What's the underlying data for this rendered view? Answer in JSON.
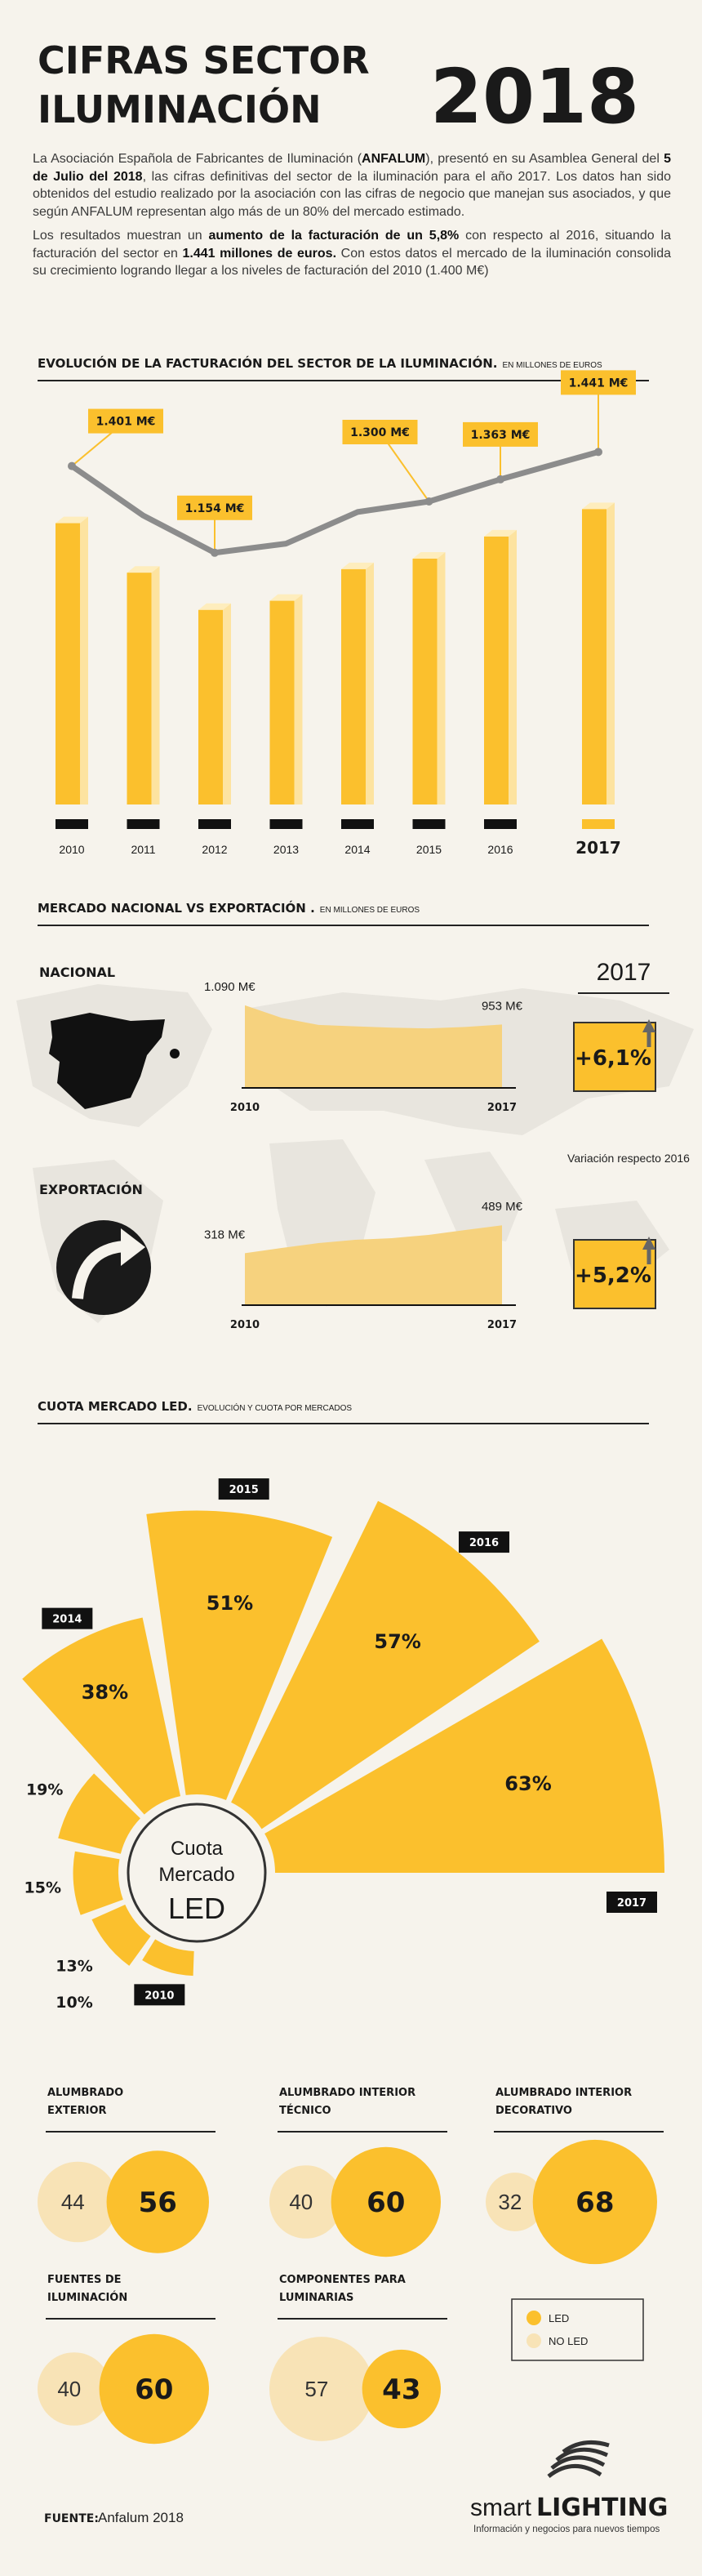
{
  "header": {
    "title_lines": [
      "CIFRAS SECTOR",
      "ILUMINACIÓN"
    ],
    "year": "2018"
  },
  "intro": [
    [
      {
        "text": "La Asociación Española de Fabricantes de Iluminación (",
        "bold": false
      },
      {
        "text": "ANFALUM",
        "bold": true
      },
      {
        "text": "), presentó en su Asamblea General del ",
        "bold": false
      },
      {
        "text": "5 de Julio del 2018",
        "bold": true
      },
      {
        "text": ", las cifras definitivas del sector de la iluminación para el año 2017. Los datos han sido obtenidos del estudio realizado por la asociación con las cifras de negocio que manejan sus asociados, y que según ANFALUM representan algo más de un 80% del mercado estimado.",
        "bold": false
      }
    ],
    [
      {
        "text": "Los resultados muestran un ",
        "bold": false
      },
      {
        "text": "aumento de la facturación de un 5,8%",
        "bold": true
      },
      {
        "text": " con respecto al 2016, situando la facturación del sector en ",
        "bold": false
      },
      {
        "text": "1.441 millones de euros.",
        "bold": true
      },
      {
        "text": " Con estos datos el mercado de la iluminación consolida su crecimiento logrando llegar a los niveles de facturación del 2010 (1.400 M€)",
        "bold": false
      }
    ]
  ],
  "chart_data": [
    {
      "type": "bar_line",
      "title": "EVOLUCIÓN DE LA FACTURACIÓN DEL SECTOR DE LA ILUMINACIÓN.",
      "subtitle": "EN MILLONES DE EUROS",
      "categories": [
        "2010",
        "2011",
        "2012",
        "2013",
        "2014",
        "2015",
        "2016",
        "2017"
      ],
      "values": [
        1401,
        1260,
        1154,
        1180,
        1270,
        1300,
        1363,
        1441
      ],
      "value_labels": [
        "1.401 M€",
        null,
        "1.154 M€",
        null,
        null,
        "1.300 M€",
        "1.363 M€",
        "1.441 M€"
      ],
      "color": "#fbc02d",
      "line_color": "#8c8c8c",
      "ylim": [
        600,
        1600
      ]
    },
    {
      "type": "area",
      "title": "MERCADO NACIONAL VS EXPORTACIÓN .",
      "subtitle": "EN MILLONES DE EUROS",
      "year": "2017",
      "change_note": "Variación respecto 2016",
      "categories": [
        "2010",
        null,
        null,
        null,
        null,
        null,
        null,
        "2017"
      ],
      "series": [
        {
          "name": "NACIONAL",
          "color": "#f6d27e",
          "values": [
            1090,
            1000,
            950,
            940,
            930,
            925,
            935,
            953
          ],
          "value_labels": [
            "1.090 M€",
            null,
            null,
            null,
            null,
            null,
            null,
            "953 M€"
          ],
          "ylim": [
            500,
            1200
          ],
          "change_label": "+6,1%"
        },
        {
          "name": "EXPORTACIÓN",
          "color": "#f6d27e",
          "values": [
            318,
            350,
            380,
            400,
            410,
            430,
            460,
            489
          ],
          "value_labels": [
            "318 M€",
            null,
            null,
            null,
            null,
            null,
            null,
            "489 M€"
          ],
          "ylim": [
            0,
            600
          ],
          "change_label": "+5,2%"
        }
      ]
    },
    {
      "type": "polar_area",
      "title": "CUOTA MERCADO LED.",
      "subtitle": "EVOLUCIÓN Y CUOTA POR MERCADOS",
      "center_label": [
        "Cuota",
        "Mercado",
        "LED"
      ],
      "categories": [
        "2010",
        null,
        null,
        null,
        "2014",
        "2015",
        "2016",
        "2017"
      ],
      "values": [
        10,
        13,
        15,
        19,
        38,
        51,
        57,
        63
      ],
      "value_labels": [
        "10%",
        "13%",
        "15%",
        "19%",
        "38%",
        "51%",
        "57%",
        "63%"
      ],
      "color": "#fbc02d"
    },
    {
      "type": "bubble_pairs",
      "categories": [
        [
          "ALUMBRADO",
          "EXTERIOR"
        ],
        [
          "ALUMBRADO INTERIOR",
          "TÉCNICO"
        ],
        [
          "ALUMBRADO INTERIOR",
          "DECORATIVO"
        ],
        [
          "FUENTES DE",
          "ILUMINACIÓN"
        ],
        [
          "COMPONENTES PARA",
          "LUMINARIAS"
        ]
      ],
      "series": [
        {
          "name": "LED",
          "color": "#fbc02d",
          "values": [
            56,
            60,
            68,
            60,
            43
          ]
        },
        {
          "name": "NO LED",
          "color": "#f8e3b6",
          "values": [
            44,
            40,
            32,
            40,
            57
          ]
        }
      ]
    }
  ],
  "source": {
    "label": "FUENTE:",
    "text": "Anfalum 2018"
  },
  "logo": {
    "name_light": "smart",
    "name_bold": "LIGHTING",
    "tagline": "Información y negocios para nuevos tiempos"
  }
}
